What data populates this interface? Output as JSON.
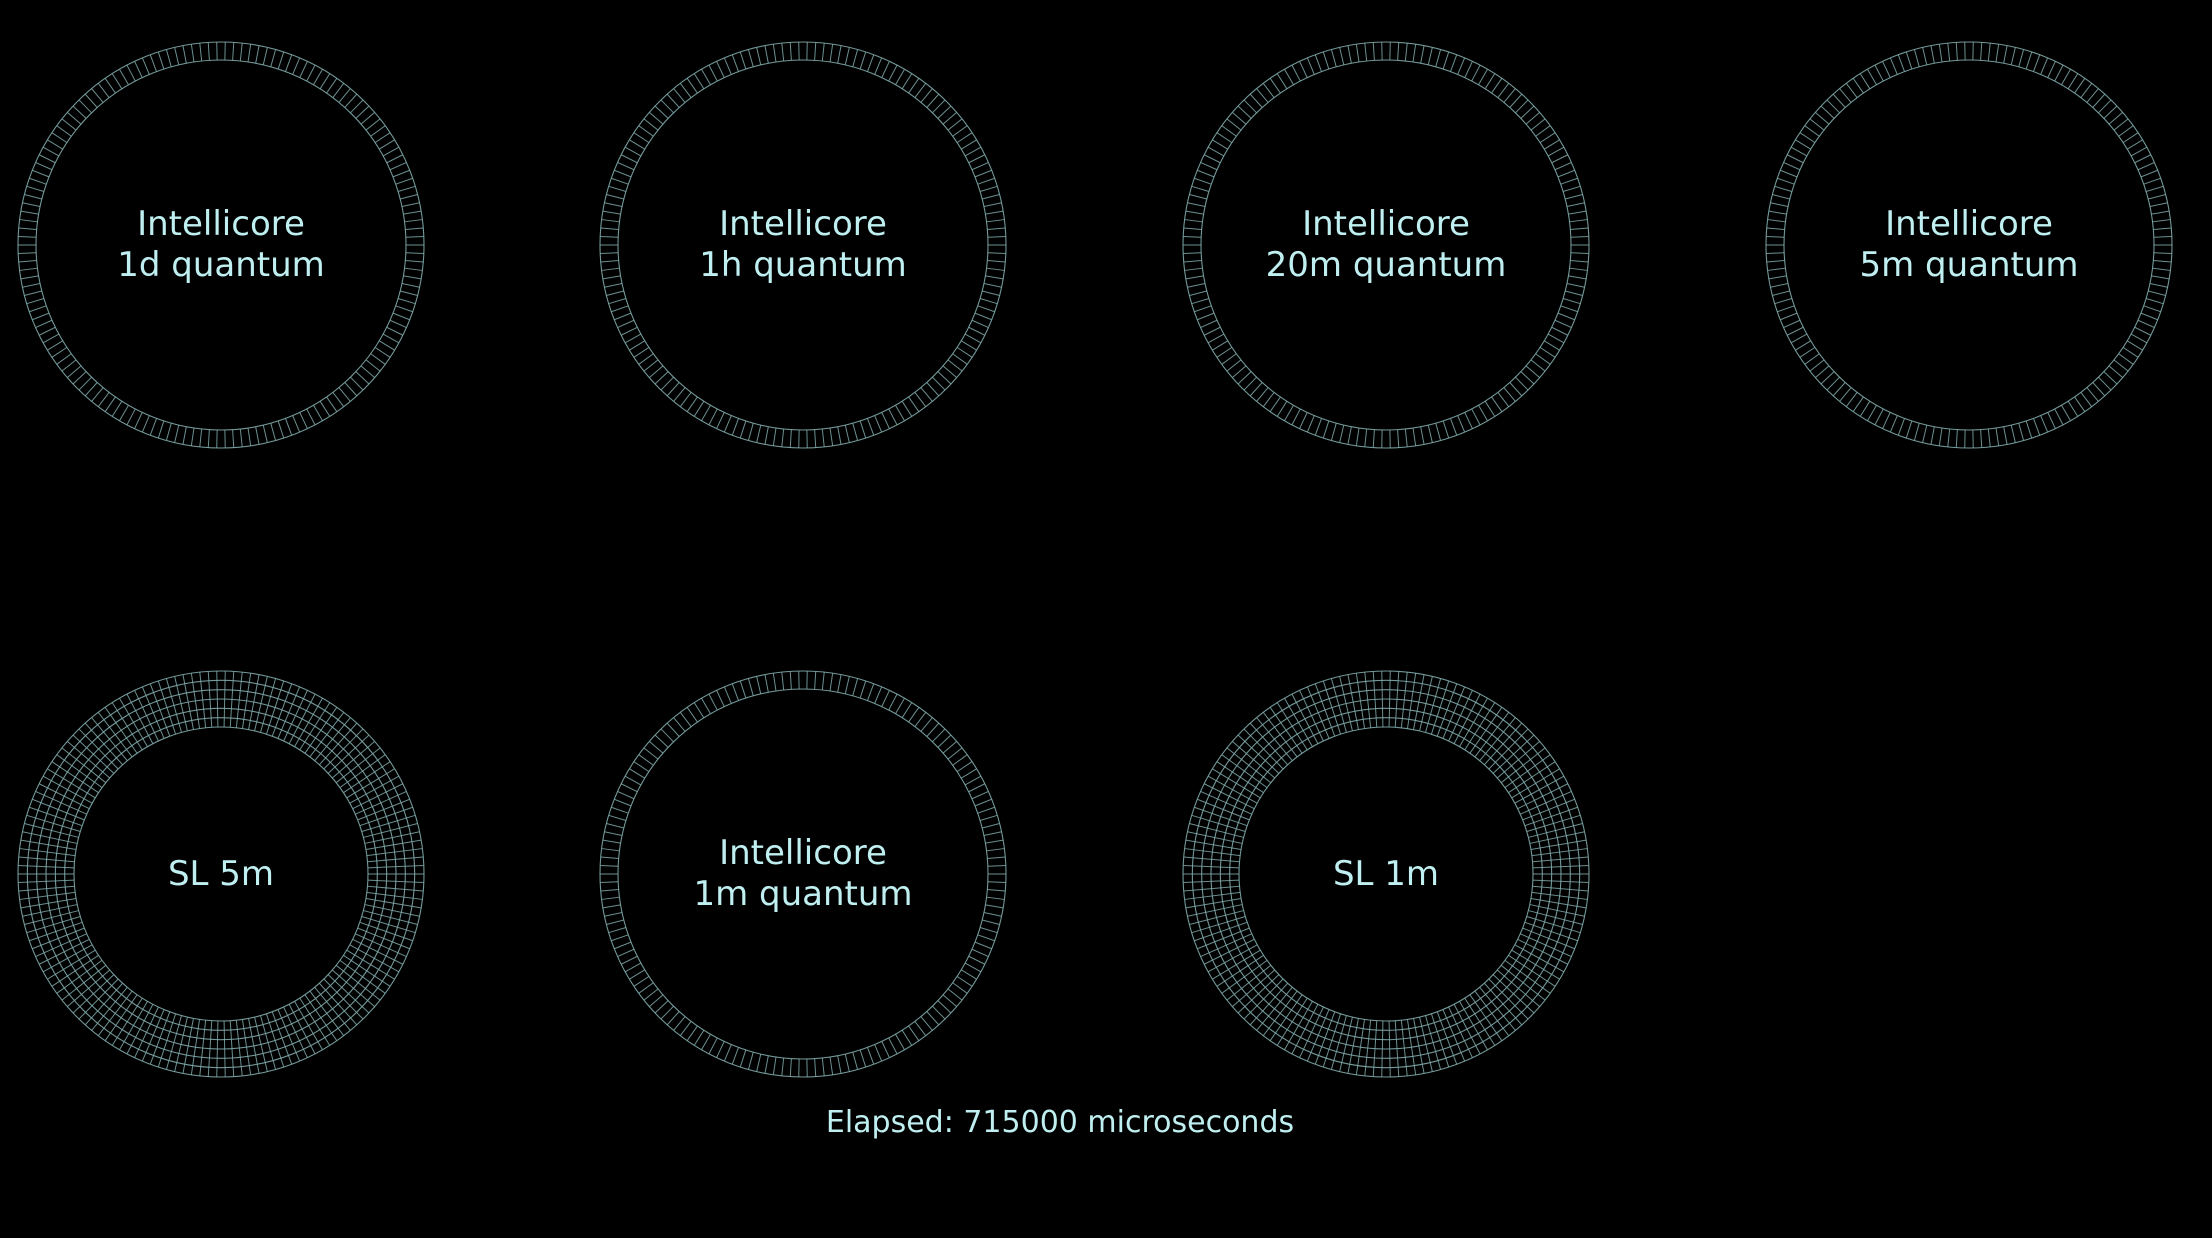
{
  "colors": {
    "background": "#000000",
    "ring": "#7fa8a8",
    "text": "#bfeff0"
  },
  "gauges": [
    {
      "line1": "Intellicore",
      "line2": "1d quantum",
      "style": "thin"
    },
    {
      "line1": "Intellicore",
      "line2": "1h quantum",
      "style": "thin"
    },
    {
      "line1": "Intellicore",
      "line2": "20m quantum",
      "style": "thin"
    },
    {
      "line1": "Intellicore",
      "line2": "5m quantum",
      "style": "thin"
    },
    {
      "line1": "SL 5m",
      "line2": "",
      "style": "thick"
    },
    {
      "line1": "Intellicore",
      "line2": "1m quantum",
      "style": "thin"
    },
    {
      "line1": "SL 1m",
      "line2": "",
      "style": "thick"
    }
  ],
  "status": {
    "elapsed_text": "Elapsed: 715000 microseconds"
  }
}
